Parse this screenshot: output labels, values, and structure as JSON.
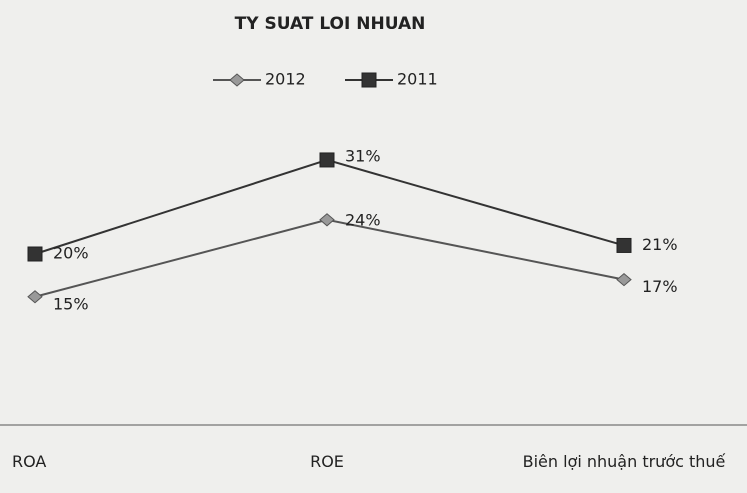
{
  "chart_data": {
    "type": "line",
    "title": "TY SUAT LOI NHUAN",
    "categories": [
      "ROA",
      "ROE",
      "Biên lợi nhuận trước thuế"
    ],
    "series": [
      {
        "name": "2012",
        "color": "#555555",
        "marker": "diamond",
        "values": [
          15,
          24,
          17
        ],
        "value_labels": [
          "15%",
          "24%",
          "17%"
        ]
      },
      {
        "name": "2011",
        "color": "#333333",
        "marker": "square",
        "values": [
          20,
          31,
          21
        ],
        "value_labels": [
          "20%",
          "31%",
          "21%"
        ]
      }
    ]
  }
}
